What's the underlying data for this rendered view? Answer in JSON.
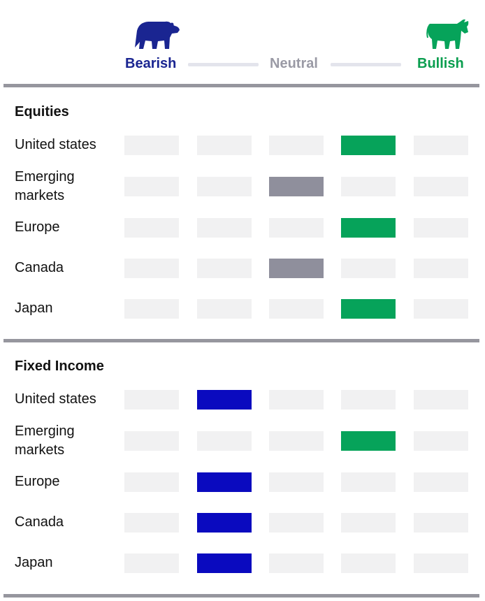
{
  "scale": {
    "bearish_label": "Bearish",
    "neutral_label": "Neutral",
    "bullish_label": "Bullish",
    "bearish_icon": "bear-icon",
    "bullish_icon": "bull-icon"
  },
  "colors": {
    "bearish": "#0a0abf",
    "neutral": "#8f8f9c",
    "bullish": "#06a35a",
    "empty": "#f1f1f2",
    "bearish_text": "#1a2591",
    "bullish_text": "#0a9e4f"
  },
  "chart_data": {
    "type": "table",
    "levels": 5,
    "scale_note": "1 = most bearish, 3 = neutral, 5 = most bullish",
    "sections": [
      {
        "title": "Equities",
        "rows": [
          {
            "label": "United states",
            "level": 4
          },
          {
            "label": "Emerging markets",
            "level": 3
          },
          {
            "label": "Europe",
            "level": 4
          },
          {
            "label": "Canada",
            "level": 3
          },
          {
            "label": "Japan",
            "level": 4
          }
        ]
      },
      {
        "title": "Fixed Income",
        "rows": [
          {
            "label": "United states",
            "level": 2
          },
          {
            "label": "Emerging markets",
            "level": 4
          },
          {
            "label": "Europe",
            "level": 2
          },
          {
            "label": "Canada",
            "level": 2
          },
          {
            "label": "Japan",
            "level": 2
          }
        ]
      }
    ]
  }
}
